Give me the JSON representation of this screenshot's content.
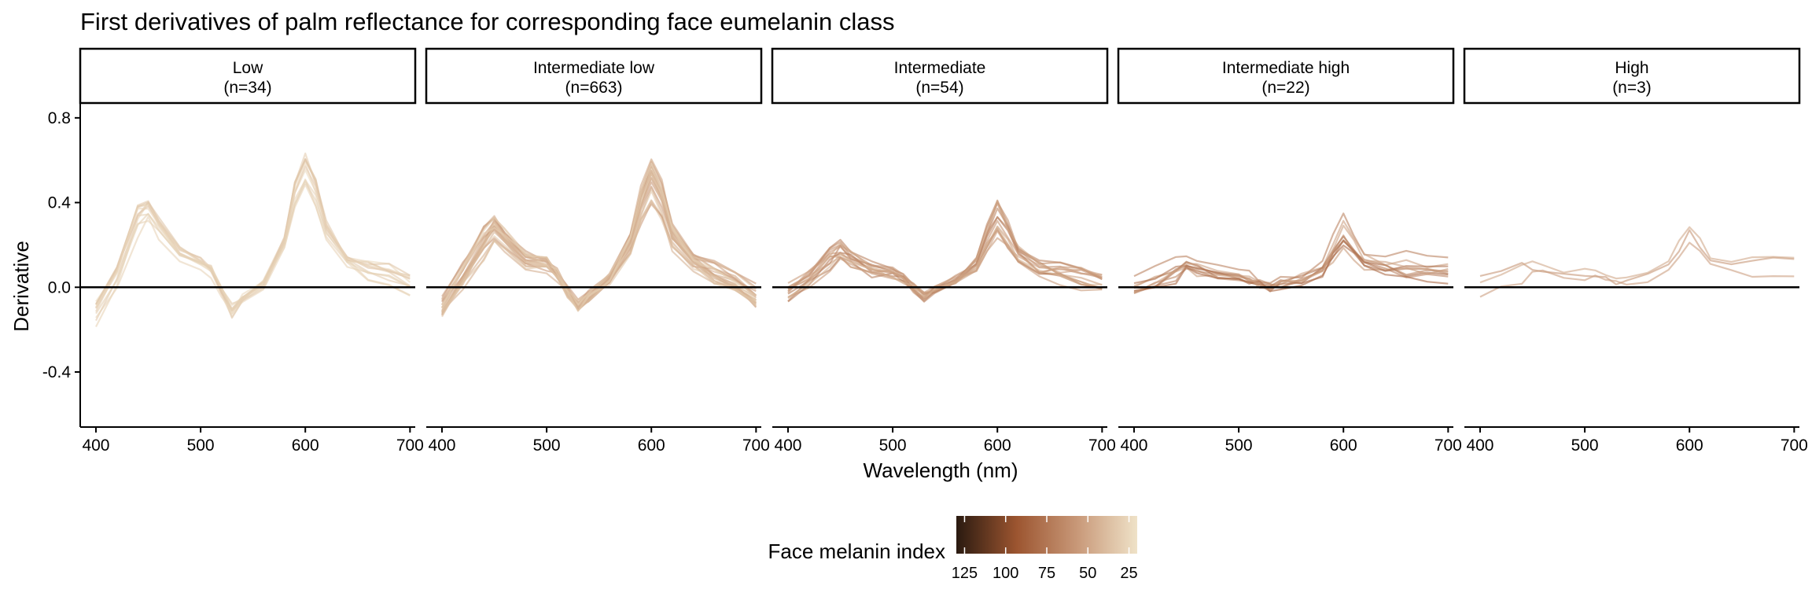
{
  "chart_data": {
    "type": "line",
    "title": "First derivatives of palm reflectance for corresponding face eumelanin class",
    "xlabel": "Wavelength (nm)",
    "ylabel": "Derivative",
    "xlim": [
      385,
      705
    ],
    "ylim": [
      -0.66,
      0.87
    ],
    "x_ticks": [
      400,
      500,
      600,
      700
    ],
    "x_tick_labels": [
      "400",
      "500",
      "600",
      "700"
    ],
    "y_ticks": [
      0.8,
      0.4,
      0.0,
      -0.4
    ],
    "y_tick_labels": [
      "0.8",
      "0.4",
      "0.0",
      "-0.4"
    ],
    "reference_line": 0,
    "x": [
      400,
      420,
      440,
      450,
      460,
      480,
      500,
      510,
      520,
      530,
      540,
      560,
      580,
      590,
      600,
      610,
      620,
      640,
      660,
      680,
      700
    ],
    "panels": [
      {
        "label": "Low",
        "n_label": "(n=34)",
        "series_shown": 12,
        "melanin_range": [
          24,
          34
        ],
        "representative_curve": [
          -0.12,
          0.04,
          0.31,
          0.36,
          0.28,
          0.15,
          0.11,
          0.08,
          -0.02,
          -0.11,
          -0.05,
          0.01,
          0.2,
          0.42,
          0.54,
          0.44,
          0.26,
          0.12,
          0.07,
          0.05,
          0.0
        ],
        "spread": 0.32
      },
      {
        "label": "Intermediate low",
        "n_label": "(n=663)",
        "series_shown": 24,
        "melanin_range": [
          30,
          62
        ],
        "representative_curve": [
          -0.08,
          0.06,
          0.22,
          0.27,
          0.22,
          0.13,
          0.11,
          0.06,
          -0.02,
          -0.08,
          -0.04,
          0.04,
          0.2,
          0.38,
          0.5,
          0.4,
          0.24,
          0.12,
          0.07,
          0.03,
          -0.04
        ],
        "spread": 0.5
      },
      {
        "label": "Intermediate",
        "n_label": "(n=54)",
        "series_shown": 14,
        "melanin_range": [
          40,
          74
        ],
        "representative_curve": [
          -0.03,
          0.04,
          0.13,
          0.16,
          0.13,
          0.08,
          0.07,
          0.04,
          0.0,
          -0.04,
          -0.01,
          0.03,
          0.1,
          0.22,
          0.32,
          0.24,
          0.15,
          0.09,
          0.07,
          0.05,
          0.02
        ],
        "spread": 0.5
      },
      {
        "label": "Intermediate high",
        "n_label": "(n=22)",
        "series_shown": 10,
        "melanin_range": [
          46,
          82
        ],
        "representative_curve": [
          0.0,
          0.03,
          0.08,
          0.1,
          0.09,
          0.06,
          0.05,
          0.04,
          0.02,
          0.0,
          0.02,
          0.04,
          0.08,
          0.17,
          0.25,
          0.19,
          0.12,
          0.1,
          0.09,
          0.09,
          0.08
        ],
        "spread": 0.5
      },
      {
        "label": "High",
        "n_label": "(n=3)",
        "series_shown": 3,
        "melanin_range": [
          48,
          66
        ],
        "representative_curve": [
          0.01,
          0.04,
          0.08,
          0.09,
          0.08,
          0.07,
          0.06,
          0.05,
          0.03,
          0.02,
          0.03,
          0.05,
          0.1,
          0.18,
          0.25,
          0.19,
          0.13,
          0.11,
          0.11,
          0.11,
          0.1
        ],
        "spread": 0.4
      }
    ],
    "legend": {
      "title": "Face melanin index",
      "position": "bottom",
      "range": [
        20,
        130
      ],
      "ticks": [
        125,
        100,
        75,
        50,
        25
      ],
      "tick_labels": [
        "125",
        "100",
        "75",
        "50",
        "25"
      ],
      "colors": [
        "#2a1a10",
        "#9c5530",
        "#c89878",
        "#efe2c8"
      ]
    }
  }
}
